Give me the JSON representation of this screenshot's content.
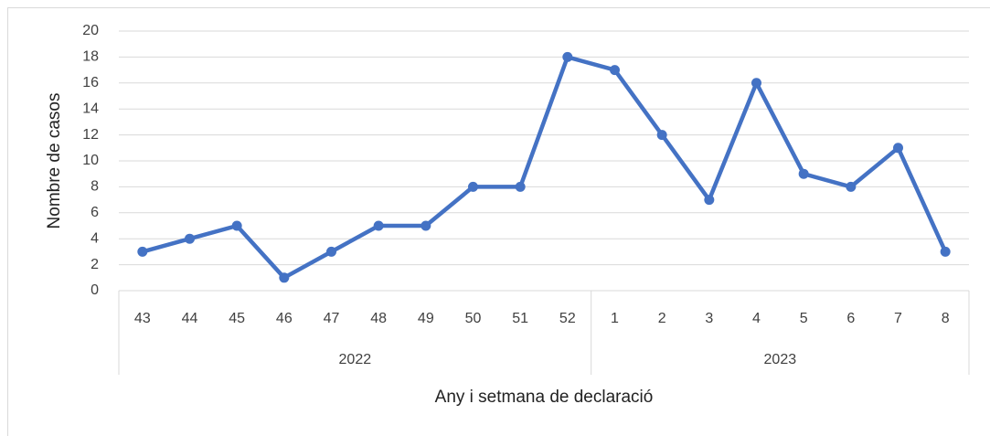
{
  "chart_data": {
    "type": "line",
    "x_label": "Any i setmana de declaració",
    "y_label": "Nombre de casos",
    "category_groups": [
      {
        "label": "2022",
        "categories": [
          "43",
          "44",
          "45",
          "46",
          "47",
          "48",
          "49",
          "50",
          "51",
          "52"
        ]
      },
      {
        "label": "2023",
        "categories": [
          "1",
          "2",
          "3",
          "4",
          "5",
          "6",
          "7",
          "8"
        ]
      }
    ],
    "values": [
      3,
      4,
      5,
      1,
      3,
      5,
      5,
      8,
      8,
      18,
      17,
      12,
      7,
      16,
      9,
      8,
      11,
      3
    ],
    "color": "#4472c4",
    "ylim": [
      0,
      20
    ],
    "yticks": [
      0,
      2,
      4,
      6,
      8,
      10,
      12,
      14,
      16,
      18,
      20
    ],
    "grid": true
  }
}
